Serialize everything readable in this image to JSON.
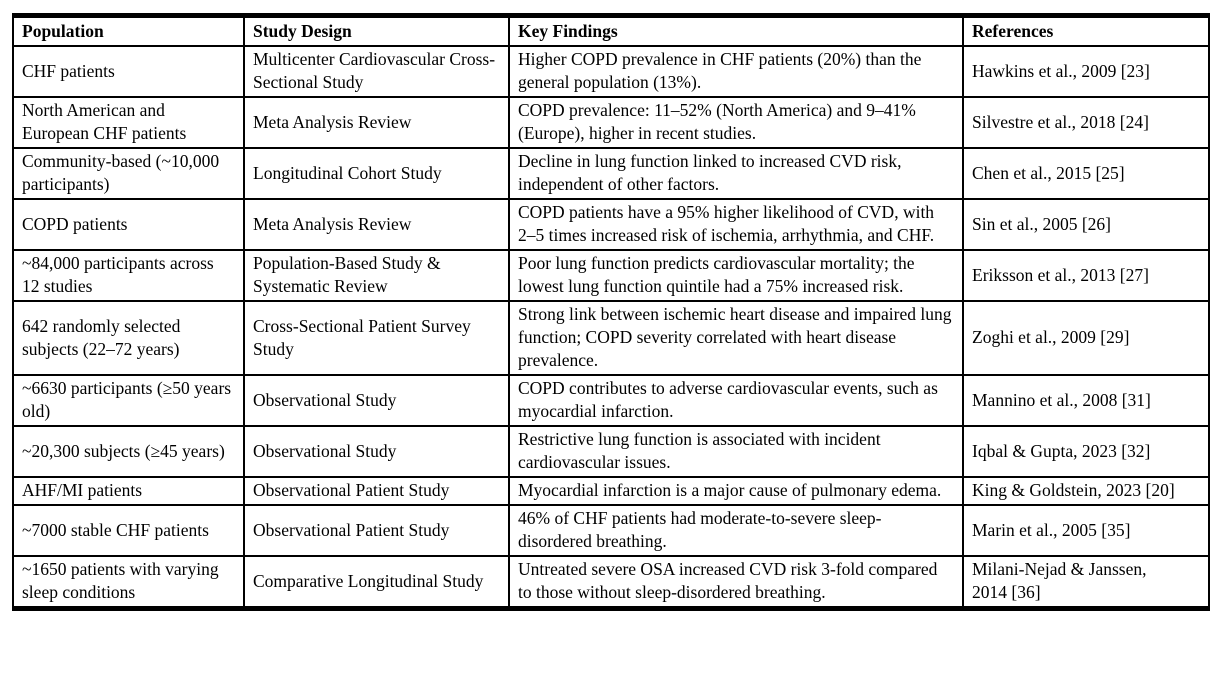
{
  "colors": {
    "background": "#ffffff",
    "text": "#000000",
    "border": "#000000"
  },
  "table": {
    "headers": [
      "Population",
      "Study Design",
      "Key Findings",
      "References"
    ],
    "rows": [
      {
        "population": "CHF patients",
        "study_design": "Multicenter Cardiovascular Cross-Sectional Study",
        "key_findings": "Higher COPD prevalence in CHF patients (20%) than the general population (13%).",
        "references": "Hawkins et al., 2009 [23]"
      },
      {
        "population": "North American and European CHF patients",
        "study_design": "Meta Analysis Review",
        "key_findings": "COPD prevalence: 11–52% (North America) and 9–41% (Europe), higher in recent studies.",
        "references": "Silvestre et al., 2018 [24]"
      },
      {
        "population": "Community-based (~10,000 participants)",
        "study_design": "Longitudinal Cohort Study",
        "key_findings": "Decline in lung function linked to increased CVD risk, independent of other factors.",
        "references": "Chen et al., 2015 [25]"
      },
      {
        "population": "COPD patients",
        "study_design": "Meta Analysis Review",
        "key_findings": "COPD patients have a 95% higher likelihood of CVD, with 2–5 times increased risk of ischemia, arrhythmia, and CHF.",
        "references": "Sin et al., 2005 [26]"
      },
      {
        "population": "~84,000 participants across 12 studies",
        "study_design": "Population-Based Study & Systematic Review",
        "key_findings": "Poor lung function predicts cardiovascular mortality; the lowest lung function quintile had a 75% increased risk.",
        "references": "Eriksson et al., 2013 [27]"
      },
      {
        "population": "642 randomly selected subjects (22–72 years)",
        "study_design": "Cross-Sectional Patient Survey Study",
        "key_findings": "Strong link between ischemic heart disease and impaired lung function; COPD severity correlated with heart disease prevalence.",
        "references": "Zoghi et al., 2009 [29]"
      },
      {
        "population": "~6630 participants (≥50 years old)",
        "study_design": "Observational Study",
        "key_findings": "COPD contributes to adverse cardiovascular events, such as myocardial infarction.",
        "references": "Mannino et al., 2008 [31]"
      },
      {
        "population": "~20,300 subjects (≥45 years)",
        "study_design": "Observational Study",
        "key_findings": "Restrictive lung function is associated with incident cardiovascular issues.",
        "references": "Iqbal & Gupta, 2023 [32]"
      },
      {
        "population": "AHF/MI patients",
        "study_design": "Observational Patient Study",
        "key_findings": "Myocardial infarction is a major cause of pulmonary edema.",
        "references": "King & Goldstein, 2023 [20]"
      },
      {
        "population": "~7000 stable CHF patients",
        "study_design": "Observational Patient Study",
        "key_findings": "46% of CHF patients had moderate-to-severe sleep-disordered breathing.",
        "references": "Marin et al., 2005 [35]"
      },
      {
        "population": "~1650 patients with varying sleep conditions",
        "study_design": "Comparative Longitudinal Study",
        "key_findings": "Untreated severe OSA increased CVD risk 3-fold compared to those without sleep-disordered breathing.",
        "references": "Milani-Nejad & Janssen, 2014 [36]"
      }
    ]
  }
}
